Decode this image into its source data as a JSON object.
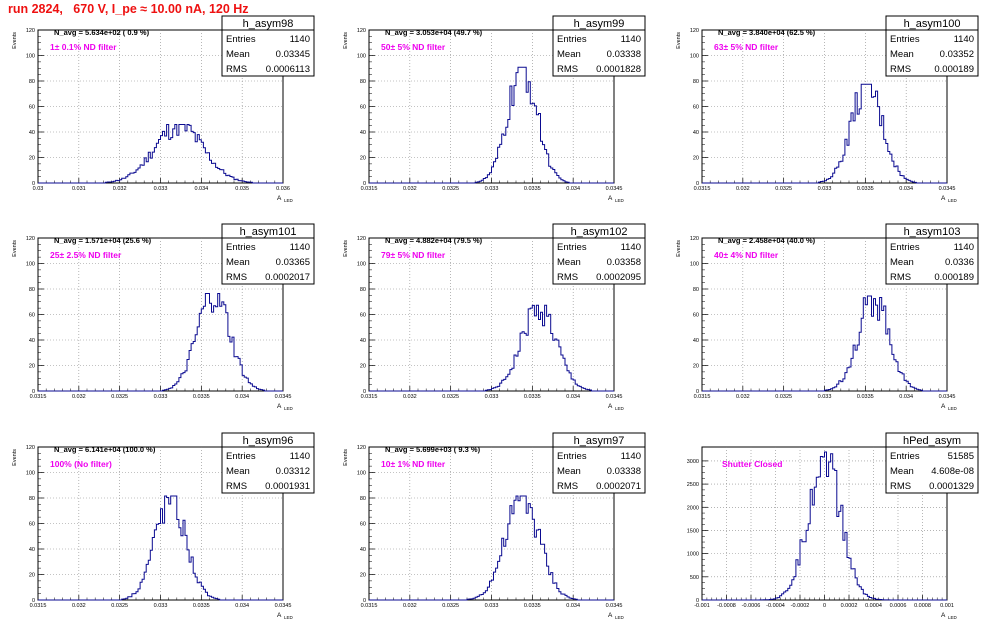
{
  "page": {
    "title": "run 2824,   670 V, I_pe ≈ 10.00 nA, 120 Hz",
    "title_color": "#ee1111"
  },
  "style": {
    "line_color": "#0a0a90",
    "filter_label_color": "#ee00ee",
    "grid_color": "#888888"
  },
  "stats_labels": {
    "entries": "Entries",
    "mean": "Mean",
    "rms": "RMS"
  },
  "chart_data": [
    {
      "type": "histogram",
      "name": "h_asym98",
      "stats": {
        "entries": "1140",
        "mean": "0.03345",
        "rms": "0.0006113"
      },
      "annotation": "N_avg = 5.634e+02 ( 0.9 %)",
      "label": "1± 0.1% ND filter",
      "xlabel": "A",
      "xlabel_sub": "LED",
      "ylabel": "Events",
      "xlim": [
        0.03,
        0.036
      ],
      "ylim": [
        0,
        120
      ],
      "xticks": [
        "0.03",
        "0.031",
        "0.032",
        "0.033",
        "0.034",
        "0.035",
        "0.036"
      ],
      "yticks": [
        0,
        20,
        40,
        60,
        80,
        100,
        120
      ],
      "mean": 0.03345,
      "sigma": 0.0006,
      "peak": 45
    },
    {
      "type": "histogram",
      "name": "h_asym99",
      "stats": {
        "entries": "1140",
        "mean": "0.03338",
        "rms": "0.0001828"
      },
      "annotation": "N_avg = 3.053e+04 (49.7 %)",
      "label": "50± 5% ND filter",
      "xlabel": "A",
      "xlabel_sub": "LED",
      "ylabel": "Events",
      "xlim": [
        0.0315,
        0.0345
      ],
      "ylim": [
        0,
        120
      ],
      "xticks": [
        "0.0315",
        "0.032",
        "0.0325",
        "0.033",
        "0.0335",
        "0.034",
        "0.0345"
      ],
      "yticks": [
        0,
        20,
        40,
        60,
        80,
        100,
        120
      ],
      "mean": 0.03338,
      "sigma": 0.00018,
      "peak": 89
    },
    {
      "type": "histogram",
      "name": "h_asym100",
      "stats": {
        "entries": "1140",
        "mean": "0.03352",
        "rms": "0.000189"
      },
      "annotation": "N_avg = 3.840e+04 (62.5 %)",
      "label": "63± 5% ND filter",
      "xlabel": "A",
      "xlabel_sub": "LED",
      "ylabel": "Events",
      "xlim": [
        0.0315,
        0.0345
      ],
      "ylim": [
        0,
        120
      ],
      "xticks": [
        "0.0315",
        "0.032",
        "0.0325",
        "0.033",
        "0.0335",
        "0.034",
        "0.0345"
      ],
      "yticks": [
        0,
        20,
        40,
        60,
        80,
        100,
        120
      ],
      "mean": 0.03352,
      "sigma": 0.00019,
      "peak": 76
    },
    {
      "type": "histogram",
      "name": "h_asym101",
      "stats": {
        "entries": "1140",
        "mean": "0.03365",
        "rms": "0.0002017"
      },
      "annotation": "N_avg = 1.571e+04 (25.6 %)",
      "label": "25± 2.5% ND filter",
      "xlabel": "A",
      "xlabel_sub": "LED",
      "ylabel": "Events",
      "xlim": [
        0.0315,
        0.0345
      ],
      "ylim": [
        0,
        120
      ],
      "xticks": [
        "0.0315",
        "0.032",
        "0.0325",
        "0.033",
        "0.0335",
        "0.034",
        "0.0345"
      ],
      "yticks": [
        0,
        20,
        40,
        60,
        80,
        100,
        120
      ],
      "mean": 0.03365,
      "sigma": 0.0002,
      "peak": 75
    },
    {
      "type": "histogram",
      "name": "h_asym102",
      "stats": {
        "entries": "1140",
        "mean": "0.03358",
        "rms": "0.0002095"
      },
      "annotation": "N_avg = 4.882e+04 (79.5 %)",
      "label": "79± 5% ND filter",
      "xlabel": "A",
      "xlabel_sub": "LED",
      "ylabel": "Events",
      "xlim": [
        0.0315,
        0.0345
      ],
      "ylim": [
        0,
        120
      ],
      "xticks": [
        "0.0315",
        "0.032",
        "0.0325",
        "0.033",
        "0.0335",
        "0.034",
        "0.0345"
      ],
      "yticks": [
        0,
        20,
        40,
        60,
        80,
        100,
        120
      ],
      "mean": 0.03358,
      "sigma": 0.00021,
      "peak": 66
    },
    {
      "type": "histogram",
      "name": "h_asym103",
      "stats": {
        "entries": "1140",
        "mean": "0.0336",
        "rms": "0.000189"
      },
      "annotation": "N_avg = 2.458e+04 (40.0 %)",
      "label": "40± 4% ND filter",
      "xlabel": "A",
      "xlabel_sub": "LED",
      "ylabel": "Events",
      "xlim": [
        0.0315,
        0.0345
      ],
      "ylim": [
        0,
        120
      ],
      "xticks": [
        "0.0315",
        "0.032",
        "0.0325",
        "0.033",
        "0.0335",
        "0.034",
        "0.0345"
      ],
      "yticks": [
        0,
        20,
        40,
        60,
        80,
        100,
        120
      ],
      "mean": 0.0336,
      "sigma": 0.00019,
      "peak": 73
    },
    {
      "type": "histogram",
      "name": "h_asym96",
      "stats": {
        "entries": "1140",
        "mean": "0.03312",
        "rms": "0.0001931"
      },
      "annotation": "N_avg = 6.141e+04 (100.0 %)",
      "label": "100% (No filter)",
      "xlabel": "A",
      "xlabel_sub": "LED",
      "ylabel": "Events",
      "xlim": [
        0.0315,
        0.0345
      ],
      "ylim": [
        0,
        120
      ],
      "xticks": [
        "0.0315",
        "0.032",
        "0.0325",
        "0.033",
        "0.0335",
        "0.034",
        "0.0345"
      ],
      "yticks": [
        0,
        20,
        40,
        60,
        80,
        100,
        120
      ],
      "mean": 0.03312,
      "sigma": 0.00019,
      "peak": 80
    },
    {
      "type": "histogram",
      "name": "h_asym97",
      "stats": {
        "entries": "1140",
        "mean": "0.03338",
        "rms": "0.0002071"
      },
      "annotation": "N_avg = 5.699e+03 ( 9.3 %)",
      "label": "10± 1% ND filter",
      "xlabel": "A",
      "xlabel_sub": "LED",
      "ylabel": "Events",
      "xlim": [
        0.0315,
        0.0345
      ],
      "ylim": [
        0,
        120
      ],
      "xticks": [
        "0.0315",
        "0.032",
        "0.0325",
        "0.033",
        "0.0335",
        "0.034",
        "0.0345"
      ],
      "yticks": [
        0,
        20,
        40,
        60,
        80,
        100,
        120
      ],
      "mean": 0.03338,
      "sigma": 0.00021,
      "peak": 80
    },
    {
      "type": "histogram",
      "name": "hPed_asym",
      "stats": {
        "entries": "51585",
        "mean": "4.608e-08",
        "rms": "0.0001329"
      },
      "annotation": "",
      "label": "Shutter Closed",
      "xlabel": "A",
      "xlabel_sub": "LED",
      "ylabel": "",
      "xlim": [
        -0.001,
        0.001
      ],
      "ylim": [
        0,
        3300
      ],
      "xticks": [
        "-0.001",
        "-0.0008",
        "-0.0006",
        "-0.0004",
        "-0.0002",
        "0",
        "0.0002",
        "0.0004",
        "0.0006",
        "0.0008",
        "0.001"
      ],
      "yticks": [
        0,
        500,
        1000,
        1500,
        2000,
        2500,
        3000
      ],
      "mean": 0.0,
      "sigma": 0.000133,
      "peak": 3130
    }
  ]
}
